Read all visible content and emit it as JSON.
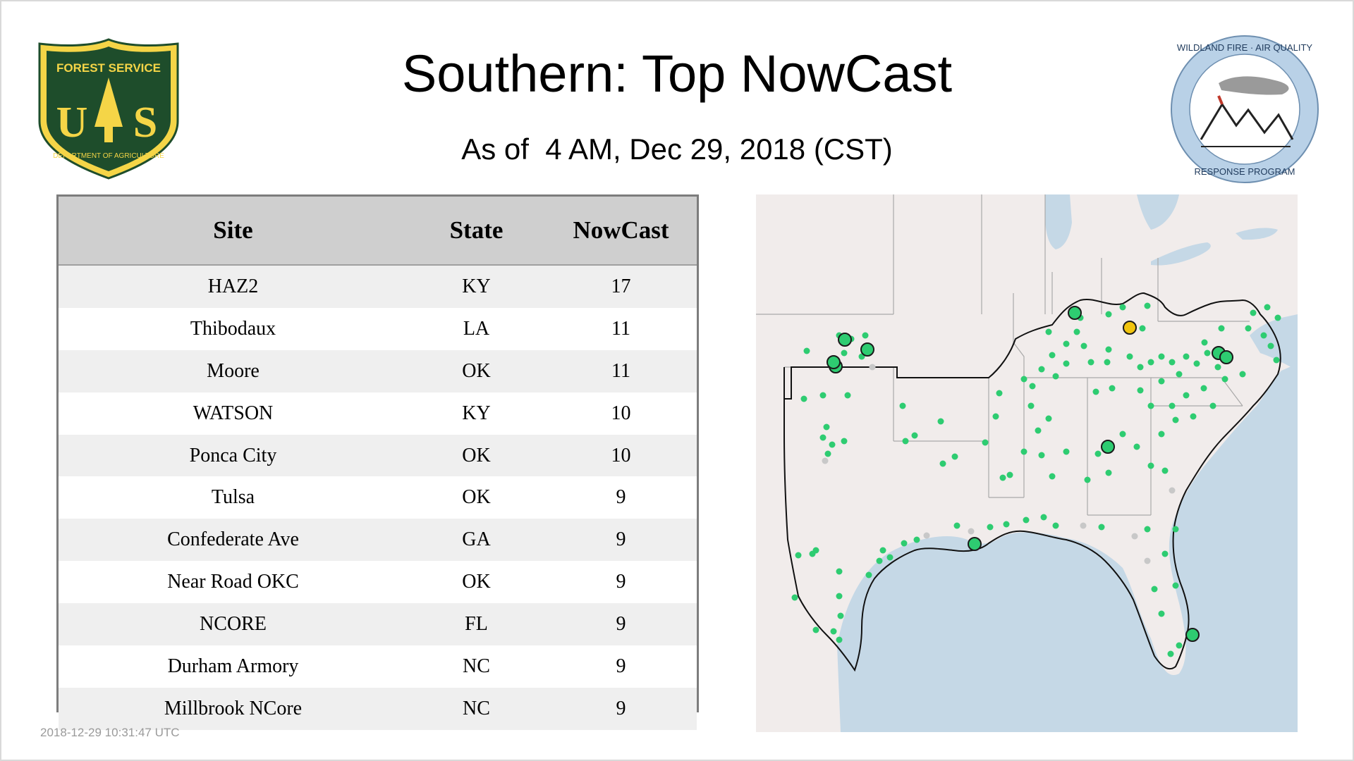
{
  "header": {
    "title": "Southern: Top NowCast",
    "subtitle": "As of  4 AM, Dec 29, 2018 (CST)"
  },
  "logos": {
    "forest_service": {
      "text_top": "FOREST SERVICE",
      "letters": "US",
      "text_bottom": "DEPARTMENT OF AGRICULTURE"
    },
    "wildland": {
      "text_top": "WILDLAND FIRE · AIR QUALITY",
      "text_bottom": "RESPONSE PROGRAM"
    }
  },
  "table": {
    "headers": {
      "site": "Site",
      "state": "State",
      "nowcast": "NowCast"
    },
    "rows": [
      {
        "site": "HAZ2",
        "state": "KY",
        "nowcast": "17"
      },
      {
        "site": "Thibodaux",
        "state": "LA",
        "nowcast": "11"
      },
      {
        "site": "Moore",
        "state": "OK",
        "nowcast": "11"
      },
      {
        "site": "WATSON",
        "state": "KY",
        "nowcast": "10"
      },
      {
        "site": "Ponca City",
        "state": "OK",
        "nowcast": "10"
      },
      {
        "site": "Tulsa",
        "state": "OK",
        "nowcast": "9"
      },
      {
        "site": "Confederate Ave",
        "state": "GA",
        "nowcast": "9"
      },
      {
        "site": "Near Road OKC",
        "state": "OK",
        "nowcast": "9"
      },
      {
        "site": "NCORE",
        "state": "FL",
        "nowcast": "9"
      },
      {
        "site": "Durham Armory",
        "state": "NC",
        "nowcast": "9"
      },
      {
        "site": "Millbrook NCore",
        "state": "NC",
        "nowcast": "9"
      }
    ]
  },
  "map": {
    "colors": {
      "good": "#2ecc71",
      "moderate": "#f1c40f",
      "nodata": "#c8c8c8",
      "water": "#c5d8e6",
      "land": "#f1eceb"
    }
  },
  "timestamp": "2018-12-29 10:31:47 UTC",
  "colors": {
    "header_bg": "#cfcfcf",
    "row_alt": "#efefef",
    "fs_green": "#1e4d2b",
    "fs_gold": "#f5d547"
  }
}
